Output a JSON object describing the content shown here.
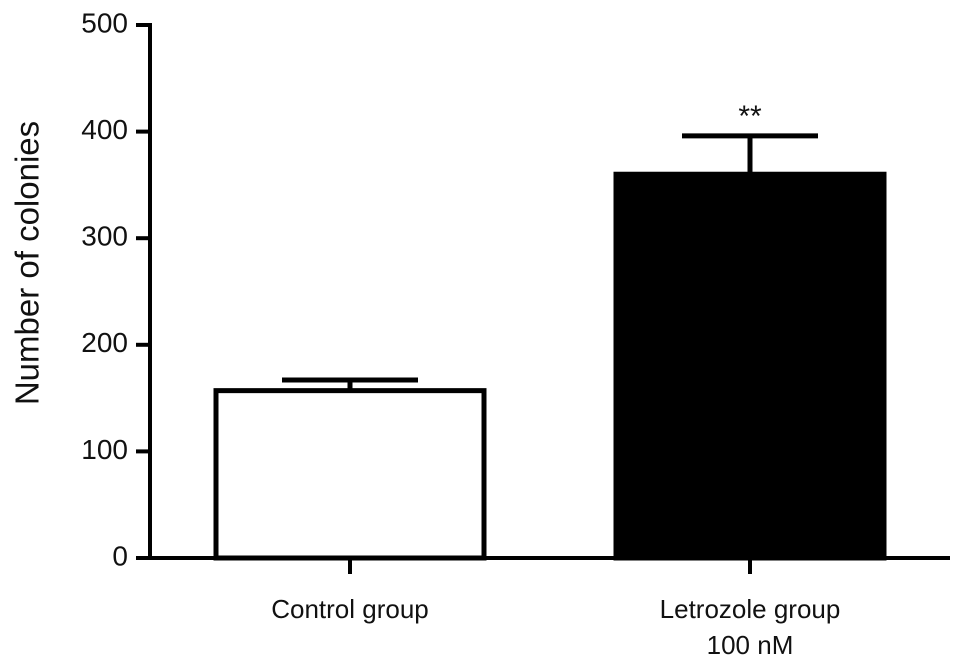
{
  "chart_data": {
    "type": "bar",
    "y_label": "Number of colonies",
    "categories": [
      "Control group",
      "Letrozole group\n100 nM"
    ],
    "values": [
      157,
      360
    ],
    "errors": [
      10,
      36
    ],
    "colors": [
      "#ffffff",
      "#000000"
    ],
    "annotations": [
      {
        "text": "**",
        "category": 1
      }
    ],
    "ylim": [
      0,
      500
    ],
    "yticks": [
      0,
      100,
      200,
      300,
      400,
      500
    ],
    "grid": false
  }
}
